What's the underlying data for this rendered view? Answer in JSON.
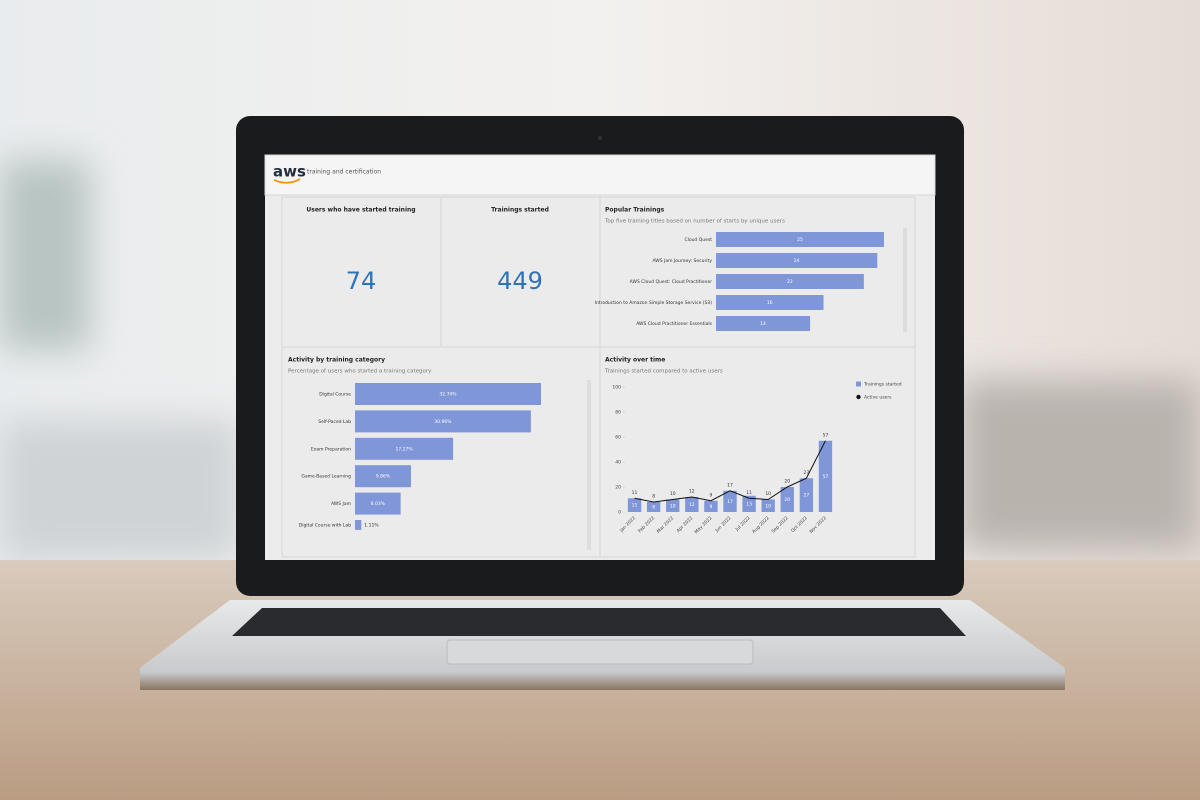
{
  "header": {
    "logo": "aws",
    "product": "training and certification"
  },
  "kpis": [
    {
      "title": "Users who have started training",
      "value": 74
    },
    {
      "title": "Trainings started",
      "value": 449
    }
  ],
  "chart_data": [
    {
      "type": "bar",
      "orientation": "horizontal",
      "title": "Popular Trainings",
      "subtitle": "Top five training titles based on number of starts by unique users",
      "categories": [
        "Cloud Quest",
        "AWS Jam Journey: Security",
        "AWS Cloud Quest: Cloud Practitioner",
        "Introduction to Amazon Simple Storage Service (S3)",
        "AWS Cloud Practitioner Essentials"
      ],
      "values": [
        25,
        24,
        22,
        16,
        14
      ],
      "color": "#7f96d9"
    },
    {
      "type": "bar",
      "orientation": "horizontal",
      "title": "Activity by training category",
      "subtitle": "Percentage of users who started a training category",
      "categories": [
        "Digital Course",
        "Self-Paced Lab",
        "Exam Preparation",
        "Game-Based Learning",
        "AWS Jam",
        "Digital Course with Lab"
      ],
      "values": [
        32.74,
        30.96,
        17.27,
        9.86,
        8.03,
        1.11
      ],
      "value_labels": [
        "32.74%",
        "30.96%",
        "17.27%",
        "9.86%",
        "8.03%",
        "1.11%"
      ],
      "color": "#7f96d9"
    },
    {
      "type": "combo",
      "title": "Activity over time",
      "subtitle": "Trainings started compared to active users",
      "categories": [
        "Jan 2022",
        "Feb 2022",
        "Mar 2022",
        "Apr 2022",
        "May 2022",
        "Jun 2022",
        "Jul 2022",
        "Aug 2022",
        "Sep 2022",
        "Oct 2022",
        "Nov 2022"
      ],
      "series": [
        {
          "name": "Trainings started",
          "mark": "bar",
          "color": "#7f96d9",
          "values": [
            11,
            8,
            10,
            12,
            9,
            17,
            13,
            10,
            20,
            27,
            57
          ]
        },
        {
          "name": "Active users",
          "mark": "line",
          "color": "#111111",
          "values": [
            11,
            8,
            10,
            12,
            9,
            17,
            11,
            10,
            20,
            27,
            57
          ]
        }
      ],
      "ylim": [
        0,
        100
      ],
      "yticks": [
        0,
        20,
        40,
        60,
        80,
        100
      ]
    }
  ]
}
